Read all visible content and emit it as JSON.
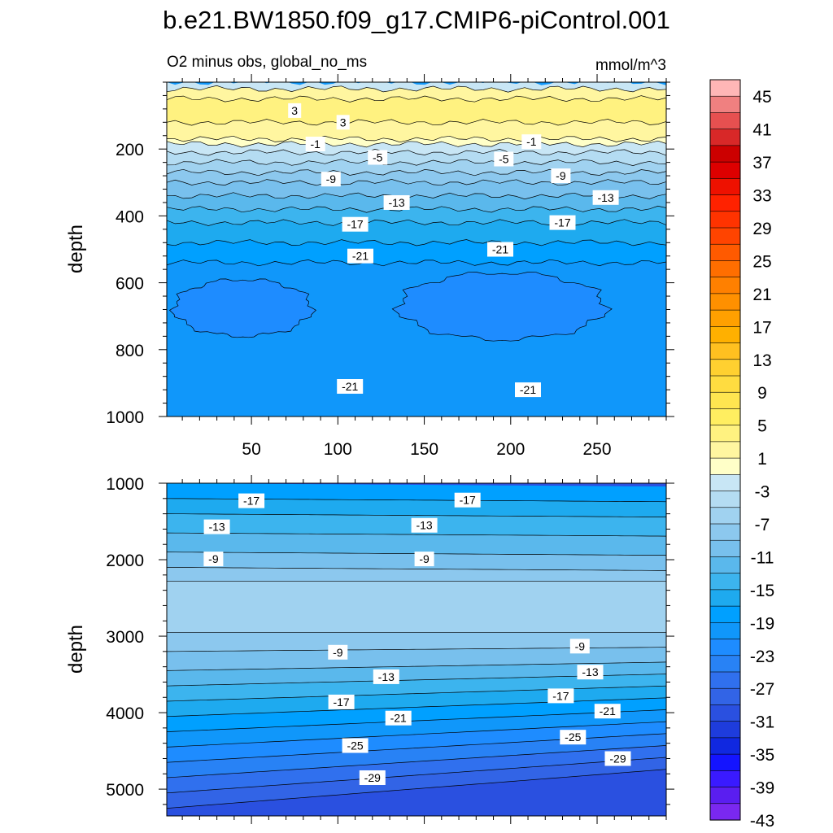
{
  "title": "b.e21.BW1850.f09_g17.CMIP6-piControl.001",
  "chart_data": [
    {
      "type": "heatmap",
      "subtitle_left": "O2 minus obs, global_no_ms",
      "subtitle_right": "mmol/m^3",
      "ylabel": "depth",
      "xlabel": "",
      "xlim": [
        1,
        290
      ],
      "ylim": [
        1000,
        0
      ],
      "x_ticks": [
        50,
        100,
        150,
        200,
        250
      ],
      "x_tick_labels": [
        "50",
        "100",
        "150",
        "200",
        "250"
      ],
      "y_ticks": [
        200,
        400,
        600,
        800,
        1000
      ],
      "y_tick_labels": [
        "200",
        "400",
        "600",
        "800",
        "1000"
      ],
      "bands": [
        {
          "top": 0,
          "bottom": 20,
          "value": -3
        },
        {
          "top": 20,
          "bottom": 50,
          "value": 1
        },
        {
          "top": 50,
          "bottom": 120,
          "value": 3
        },
        {
          "top": 120,
          "bottom": 170,
          "value": 1
        },
        {
          "top": 170,
          "bottom": 185,
          "value": -1
        },
        {
          "top": 185,
          "bottom": 210,
          "value": -3
        },
        {
          "top": 210,
          "bottom": 240,
          "value": -5
        },
        {
          "top": 240,
          "bottom": 270,
          "value": -7
        },
        {
          "top": 270,
          "bottom": 300,
          "value": -9
        },
        {
          "top": 300,
          "bottom": 340,
          "value": -11
        },
        {
          "top": 340,
          "bottom": 380,
          "value": -13
        },
        {
          "top": 380,
          "bottom": 420,
          "value": -15
        },
        {
          "top": 420,
          "bottom": 480,
          "value": -17
        },
        {
          "top": 480,
          "bottom": 540,
          "value": -19
        },
        {
          "top": 540,
          "bottom": 1000,
          "value": -21
        }
      ],
      "blobs": [
        {
          "x_range": [
            5,
            85
          ],
          "depth_range": [
            590,
            760
          ],
          "value": -23
        },
        {
          "x_range": [
            135,
            255
          ],
          "depth_range": [
            570,
            770
          ],
          "value": -23
        }
      ],
      "contour_labels": [
        {
          "x": 75,
          "depth": 85,
          "text": "3"
        },
        {
          "x": 103,
          "depth": 120,
          "text": "3"
        },
        {
          "x": 87,
          "depth": 185,
          "text": "-1"
        },
        {
          "x": 212,
          "depth": 178,
          "text": "-1"
        },
        {
          "x": 123,
          "depth": 225,
          "text": "-5"
        },
        {
          "x": 196,
          "depth": 230,
          "text": "-5"
        },
        {
          "x": 96,
          "depth": 290,
          "text": "-9"
        },
        {
          "x": 229,
          "depth": 280,
          "text": "-9"
        },
        {
          "x": 134,
          "depth": 360,
          "text": "-13"
        },
        {
          "x": 255,
          "depth": 345,
          "text": "-13"
        },
        {
          "x": 110,
          "depth": 425,
          "text": "-17"
        },
        {
          "x": 230,
          "depth": 420,
          "text": "-17"
        },
        {
          "x": 113,
          "depth": 520,
          "text": "-21"
        },
        {
          "x": 194,
          "depth": 500,
          "text": "-21"
        },
        {
          "x": 107,
          "depth": 910,
          "text": "-21"
        },
        {
          "x": 210,
          "depth": 920,
          "text": "-21"
        }
      ]
    },
    {
      "type": "heatmap",
      "ylabel": "depth",
      "xlabel": "",
      "xlim": [
        1,
        290
      ],
      "ylim": [
        5350,
        1000
      ],
      "x_ticks": [
        50,
        100,
        150,
        200,
        250
      ],
      "y_ticks": [
        1000,
        2000,
        3000,
        4000,
        5000
      ],
      "y_tick_labels": [
        "1000",
        "2000",
        "3000",
        "4000",
        "5000"
      ],
      "bands": [
        {
          "top": 1000,
          "bottom": 1200,
          "value": -19
        },
        {
          "top": 1200,
          "bottom": 1400,
          "value": -17
        },
        {
          "top": 1400,
          "bottom": 1650,
          "value": -15
        },
        {
          "top": 1650,
          "bottom": 1900,
          "value": -13
        },
        {
          "top": 1900,
          "bottom": 2100,
          "value": -11
        },
        {
          "top": 2100,
          "bottom": 2280,
          "value": -9
        },
        {
          "top": 2280,
          "bottom": 2950,
          "value": -7
        },
        {
          "top": 2950,
          "bottom": 3200,
          "value": -9
        },
        {
          "top": 3200,
          "bottom": 3450,
          "value": -11
        },
        {
          "top": 3450,
          "bottom": 3650,
          "value": -13
        },
        {
          "top": 3650,
          "bottom": 3850,
          "value": -15
        },
        {
          "top": 3850,
          "bottom": 4050,
          "value": -17
        },
        {
          "top": 4050,
          "bottom": 4250,
          "value": -19
        },
        {
          "top": 4250,
          "bottom": 4450,
          "value": -21
        },
        {
          "top": 4450,
          "bottom": 4650,
          "value": -23
        },
        {
          "top": 4650,
          "bottom": 4850,
          "value": -25
        },
        {
          "top": 4850,
          "bottom": 5050,
          "value": -27
        },
        {
          "top": 5050,
          "bottom": 5250,
          "value": -29
        },
        {
          "top": 5250,
          "bottom": 5350,
          "value": -31
        }
      ],
      "contour_labels": [
        {
          "x": 50,
          "depth": 1230,
          "text": "-17"
        },
        {
          "x": 175,
          "depth": 1220,
          "text": "-17"
        },
        {
          "x": 30,
          "depth": 1570,
          "text": "-13"
        },
        {
          "x": 150,
          "depth": 1550,
          "text": "-13"
        },
        {
          "x": 28,
          "depth": 1990,
          "text": "-9"
        },
        {
          "x": 150,
          "depth": 1990,
          "text": "-9"
        },
        {
          "x": 100,
          "depth": 3210,
          "text": "-9"
        },
        {
          "x": 240,
          "depth": 3130,
          "text": "-9"
        },
        {
          "x": 128,
          "depth": 3530,
          "text": "-13"
        },
        {
          "x": 246,
          "depth": 3470,
          "text": "-13"
        },
        {
          "x": 102,
          "depth": 3860,
          "text": "-17"
        },
        {
          "x": 229,
          "depth": 3780,
          "text": "-17"
        },
        {
          "x": 135,
          "depth": 4070,
          "text": "-21"
        },
        {
          "x": 256,
          "depth": 3980,
          "text": "-21"
        },
        {
          "x": 110,
          "depth": 4430,
          "text": "-25"
        },
        {
          "x": 236,
          "depth": 4320,
          "text": "-25"
        },
        {
          "x": 120,
          "depth": 4850,
          "text": "-29"
        },
        {
          "x": 262,
          "depth": 4600,
          "text": "-29"
        }
      ]
    }
  ],
  "colorbar": {
    "levels": [
      -45,
      -43,
      -41,
      -39,
      -37,
      -35,
      -33,
      -31,
      -29,
      -27,
      -25,
      -23,
      -21,
      -19,
      -17,
      -15,
      -13,
      -11,
      -9,
      -7,
      -5,
      -3,
      -1,
      1,
      3,
      5,
      7,
      9,
      11,
      13,
      15,
      17,
      19,
      21,
      23,
      25,
      27,
      29,
      31,
      33,
      35,
      37,
      39,
      41,
      43,
      45
    ],
    "tick_labels": [
      "45",
      "41",
      "37",
      "33",
      "29",
      "25",
      "21",
      "17",
      "13",
      "9",
      "5",
      "1",
      "-3",
      "-7",
      "-11",
      "-15",
      "-19",
      "-23",
      "-27",
      "-31",
      "-35",
      "-39",
      "-43"
    ],
    "colors_top_to_bottom": [
      "#ffb6b6",
      "#f08080",
      "#e65050",
      "#d82828",
      "#cc0000",
      "#dd0000",
      "#ee1100",
      "#ff2200",
      "#ff3300",
      "#ff4400",
      "#ff5a00",
      "#ff6e00",
      "#ff8000",
      "#ff9000",
      "#ffa000",
      "#ffb000",
      "#ffc020",
      "#ffd030",
      "#ffdc40",
      "#ffe550",
      "#ffee60",
      "#fff280",
      "#fff6a0",
      "#ffffc8",
      "#c8e6f5",
      "#b4dcf2",
      "#a0d2f0",
      "#8cc8ee",
      "#78c0ed",
      "#5ab8ec",
      "#3cb4ee",
      "#1eaaef",
      "#00a0ff",
      "#1097fa",
      "#1e8cff",
      "#2882f5",
      "#3070ee",
      "#3264e6",
      "#2a50e0",
      "#1e3cdc",
      "#1028e0",
      "#1414ff",
      "#3a1aff",
      "#5a1ef0",
      "#7a28f0"
    ]
  }
}
